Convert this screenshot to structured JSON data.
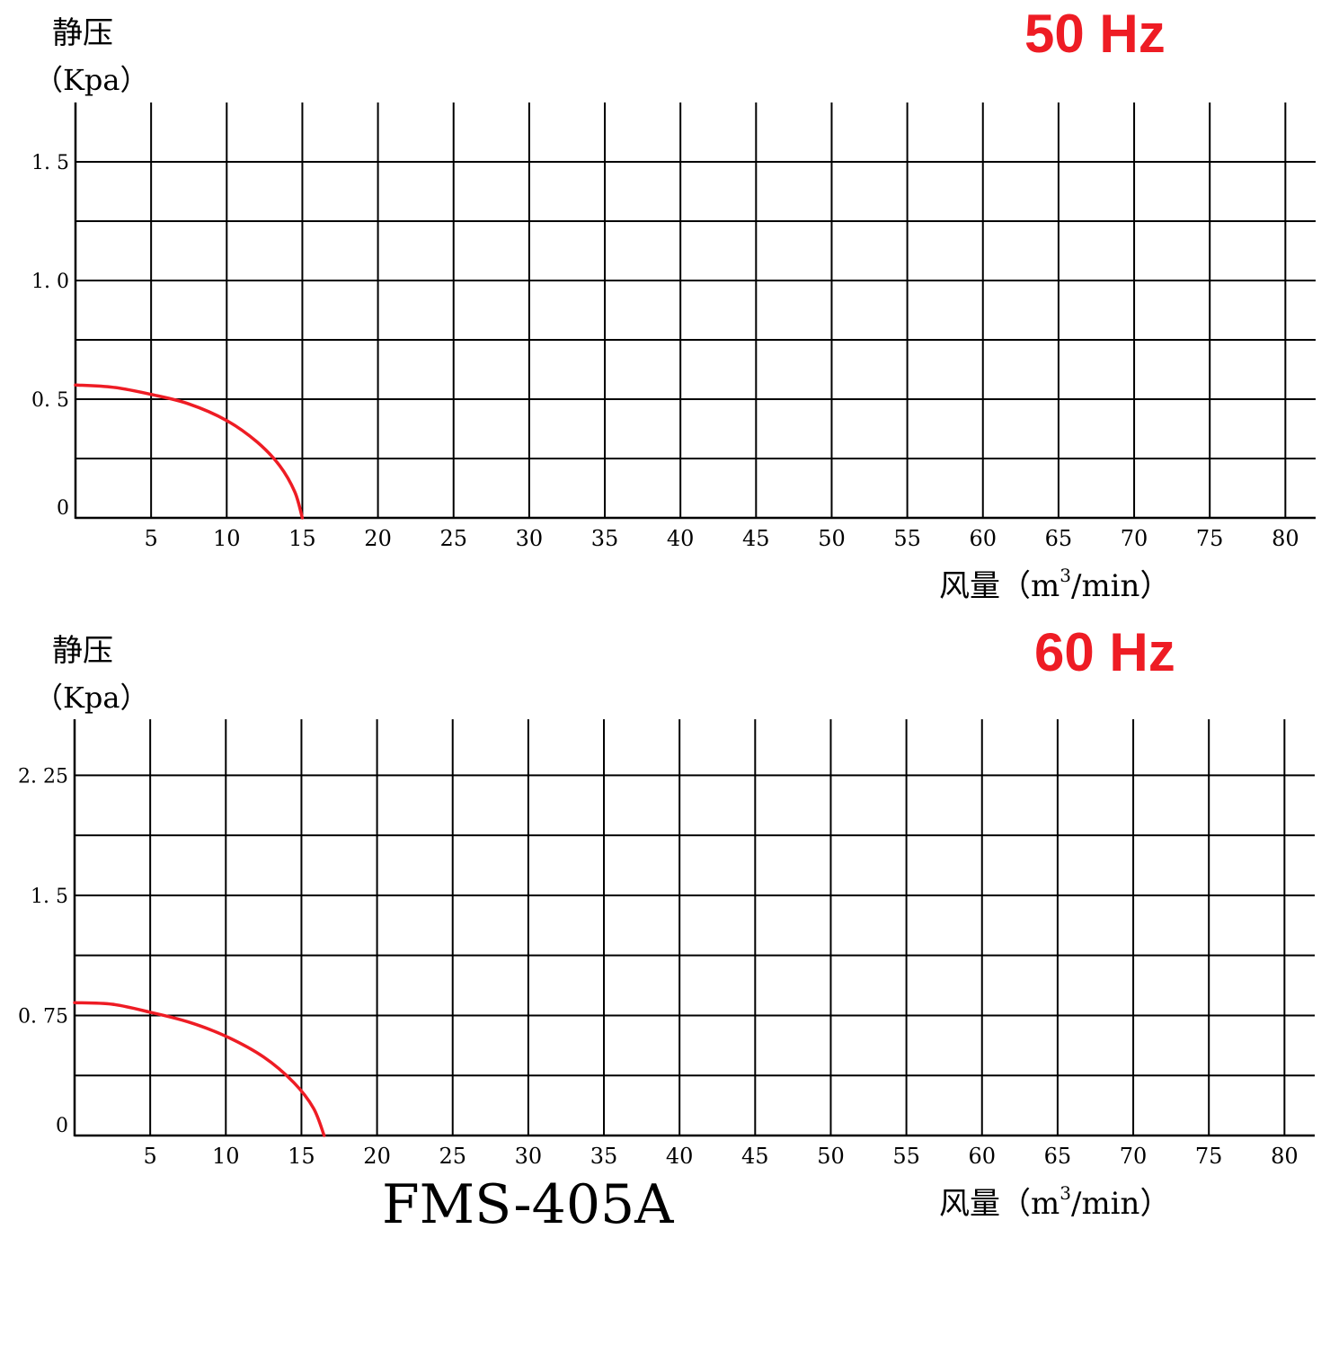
{
  "model": "FMS-405A",
  "colors": {
    "curve": "#ee1c24",
    "grid": "#000000",
    "freq_label": "#ee1c24"
  },
  "chart_data": [
    {
      "type": "line",
      "title": "50 Hz",
      "ylabel": "静压",
      "yunit": "（Kpa）",
      "xlabel_prefix": "风量（m",
      "xlabel_sup": "3",
      "xlabel_suffix": "/min）",
      "xlim": [
        0,
        82
      ],
      "ylim": [
        0,
        1.75
      ],
      "xticks": [
        5,
        10,
        15,
        20,
        25,
        30,
        35,
        40,
        45,
        50,
        55,
        60,
        65,
        70,
        75,
        80
      ],
      "xtick_labels": [
        "5",
        "10",
        "15",
        "20",
        "25",
        "30",
        "35",
        "40",
        "45",
        "50",
        "55",
        "60",
        "65",
        "70",
        "75",
        "80"
      ],
      "yticks": [
        0,
        0.5,
        1.0,
        1.5
      ],
      "ytick_labels": [
        "0",
        "0. 5",
        "1. 0",
        "1. 5"
      ],
      "ygrid": [
        0.25,
        0.5,
        0.75,
        1.0,
        1.25,
        1.5
      ],
      "grid": true,
      "series": [
        {
          "x": [
            0,
            2.5,
            5,
            7.5,
            10,
            12,
            13.5,
            14.5,
            15
          ],
          "y": [
            0.56,
            0.55,
            0.52,
            0.48,
            0.41,
            0.32,
            0.22,
            0.11,
            0.0
          ]
        }
      ]
    },
    {
      "type": "line",
      "title": "60 Hz",
      "ylabel": "静压",
      "yunit": "（Kpa）",
      "xlabel_prefix": "风量（m",
      "xlabel_sup": "3",
      "xlabel_suffix": "/min）",
      "xlim": [
        0,
        82
      ],
      "ylim": [
        0,
        2.6
      ],
      "xticks": [
        5,
        10,
        15,
        20,
        25,
        30,
        35,
        40,
        45,
        50,
        55,
        60,
        65,
        70,
        75,
        80
      ],
      "xtick_labels": [
        "5",
        "10",
        "15",
        "20",
        "25",
        "30",
        "35",
        "40",
        "45",
        "50",
        "55",
        "60",
        "65",
        "70",
        "75",
        "80"
      ],
      "yticks": [
        0,
        0.75,
        1.5,
        2.25
      ],
      "ytick_labels": [
        "0",
        "0. 75",
        "1. 5",
        "2. 25"
      ],
      "ygrid": [
        0.375,
        0.75,
        1.125,
        1.5,
        1.875,
        2.25
      ],
      "grid": true,
      "series": [
        {
          "x": [
            0,
            2.5,
            5,
            7.5,
            10,
            12.5,
            14.5,
            15.8,
            16.5
          ],
          "y": [
            0.83,
            0.82,
            0.77,
            0.71,
            0.62,
            0.49,
            0.33,
            0.17,
            0.0
          ]
        }
      ]
    }
  ]
}
